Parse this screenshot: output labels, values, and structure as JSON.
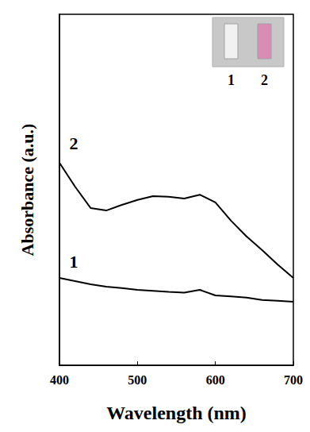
{
  "chart_data": {
    "type": "line",
    "x_label": "Wavelength (nm)",
    "y_label": "Absorbance (a.u.)",
    "xlim": [
      400,
      700
    ],
    "xticks": [
      400,
      500,
      600,
      700
    ],
    "ylim": [
      0,
      1
    ],
    "tick_labels": "x",
    "grid": false,
    "x": [
      400,
      420,
      440,
      460,
      480,
      500,
      520,
      540,
      560,
      580,
      600,
      620,
      640,
      660,
      680,
      700
    ],
    "series": [
      {
        "name": "1",
        "color": "#000000",
        "values": [
          0.249,
          0.24,
          0.231,
          0.224,
          0.22,
          0.215,
          0.212,
          0.209,
          0.207,
          0.215,
          0.199,
          0.196,
          0.193,
          0.186,
          0.184,
          0.181
        ]
      },
      {
        "name": "2",
        "color": "#000000",
        "values": [
          0.577,
          0.509,
          0.448,
          0.441,
          0.457,
          0.471,
          0.482,
          0.48,
          0.475,
          0.486,
          0.464,
          0.412,
          0.367,
          0.328,
          0.287,
          0.249
        ]
      }
    ]
  }
}
